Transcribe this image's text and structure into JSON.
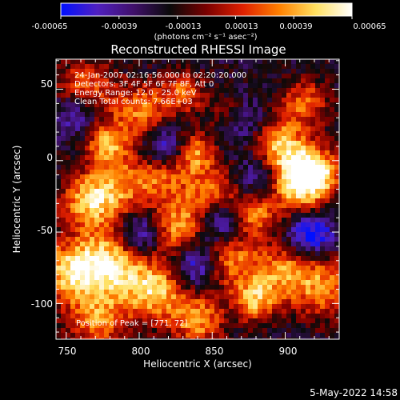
{
  "chart_data": {
    "type": "heatmap",
    "title": "Reconstructed RHESSI Image",
    "xlabel": "Heliocentric X (arcsec)",
    "ylabel": "Heliocentric Y (arcsec)",
    "xlim": [
      743,
      937
    ],
    "ylim": [
      -125,
      71
    ],
    "x_ticks": [
      750,
      800,
      850,
      900
    ],
    "y_ticks": [
      50,
      0,
      -50,
      -100
    ],
    "x_tick_labels": [
      "750",
      "800",
      "850",
      "900"
    ],
    "y_tick_labels": [
      "50",
      "0",
      "-50",
      "-100"
    ],
    "colorbar": {
      "tick_labels": [
        "-0.00065",
        "-0.00039",
        "-0.00013",
        "0.00013",
        "0.00039",
        "0.00065"
      ],
      "units": "(photons cm⁻² s⁻¹ asec⁻²)",
      "range": [
        -0.00065,
        0.00065
      ],
      "colors": [
        "#0010ff",
        "#5020c0",
        "#40106a",
        "#0a0a0a",
        "#7a0000",
        "#e02000",
        "#ff8000",
        "#ffe060",
        "#ffffff"
      ]
    },
    "annotations": [
      "24-Jan-2007 02:16:56.000 to 02:20:20.000",
      "Detectors: 3F 4F 5F 6F 7F 8F, Att 0",
      "Energy Range: 12.0 - 25.0 keV",
      "Clean   Total counts: 7.66E+03",
      "Position of Peak = [771, 72]"
    ],
    "grid": false
  },
  "footer": {
    "date": "5-May-2022 14:58"
  }
}
